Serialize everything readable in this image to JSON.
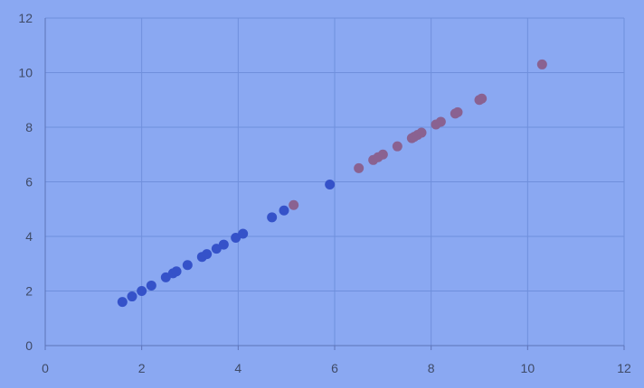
{
  "chart_data": {
    "type": "scatter",
    "title": "",
    "xlabel": "",
    "ylabel": "",
    "xlim": [
      0,
      12
    ],
    "ylim": [
      0,
      12
    ],
    "xticks": [
      0,
      2,
      4,
      6,
      8,
      10,
      12
    ],
    "yticks": [
      0,
      2,
      4,
      6,
      8,
      10,
      12
    ],
    "grid": true,
    "legend": "none",
    "series": [
      {
        "color": "#3552c9",
        "x": [
          1.6,
          1.8,
          2.0,
          2.2,
          2.5,
          2.65,
          2.72,
          2.95,
          3.25,
          3.35,
          3.55,
          3.7,
          3.95,
          4.1,
          4.7,
          4.95,
          5.9
        ],
        "y": [
          1.6,
          1.8,
          2.0,
          2.2,
          2.5,
          2.65,
          2.72,
          2.95,
          3.25,
          3.35,
          3.55,
          3.7,
          3.95,
          4.1,
          4.7,
          4.95,
          5.9
        ]
      },
      {
        "color": "#8a6291",
        "x": [
          5.15,
          6.5,
          6.8,
          6.9,
          7.0,
          7.3,
          7.6,
          7.65,
          7.72,
          7.8,
          8.1,
          8.2,
          8.5,
          8.55,
          9.0,
          9.05,
          10.3
        ],
        "y": [
          5.15,
          6.5,
          6.8,
          6.9,
          7.0,
          7.3,
          7.6,
          7.65,
          7.72,
          7.8,
          8.1,
          8.2,
          8.5,
          8.55,
          9.0,
          9.05,
          10.3
        ]
      }
    ],
    "colors": {
      "background": "#8aa8f2",
      "plot_area": "#8aa8f2",
      "gridline": "#6f8fdc",
      "axis": "#5c73b8",
      "tick_label": "#3f4a66"
    }
  }
}
